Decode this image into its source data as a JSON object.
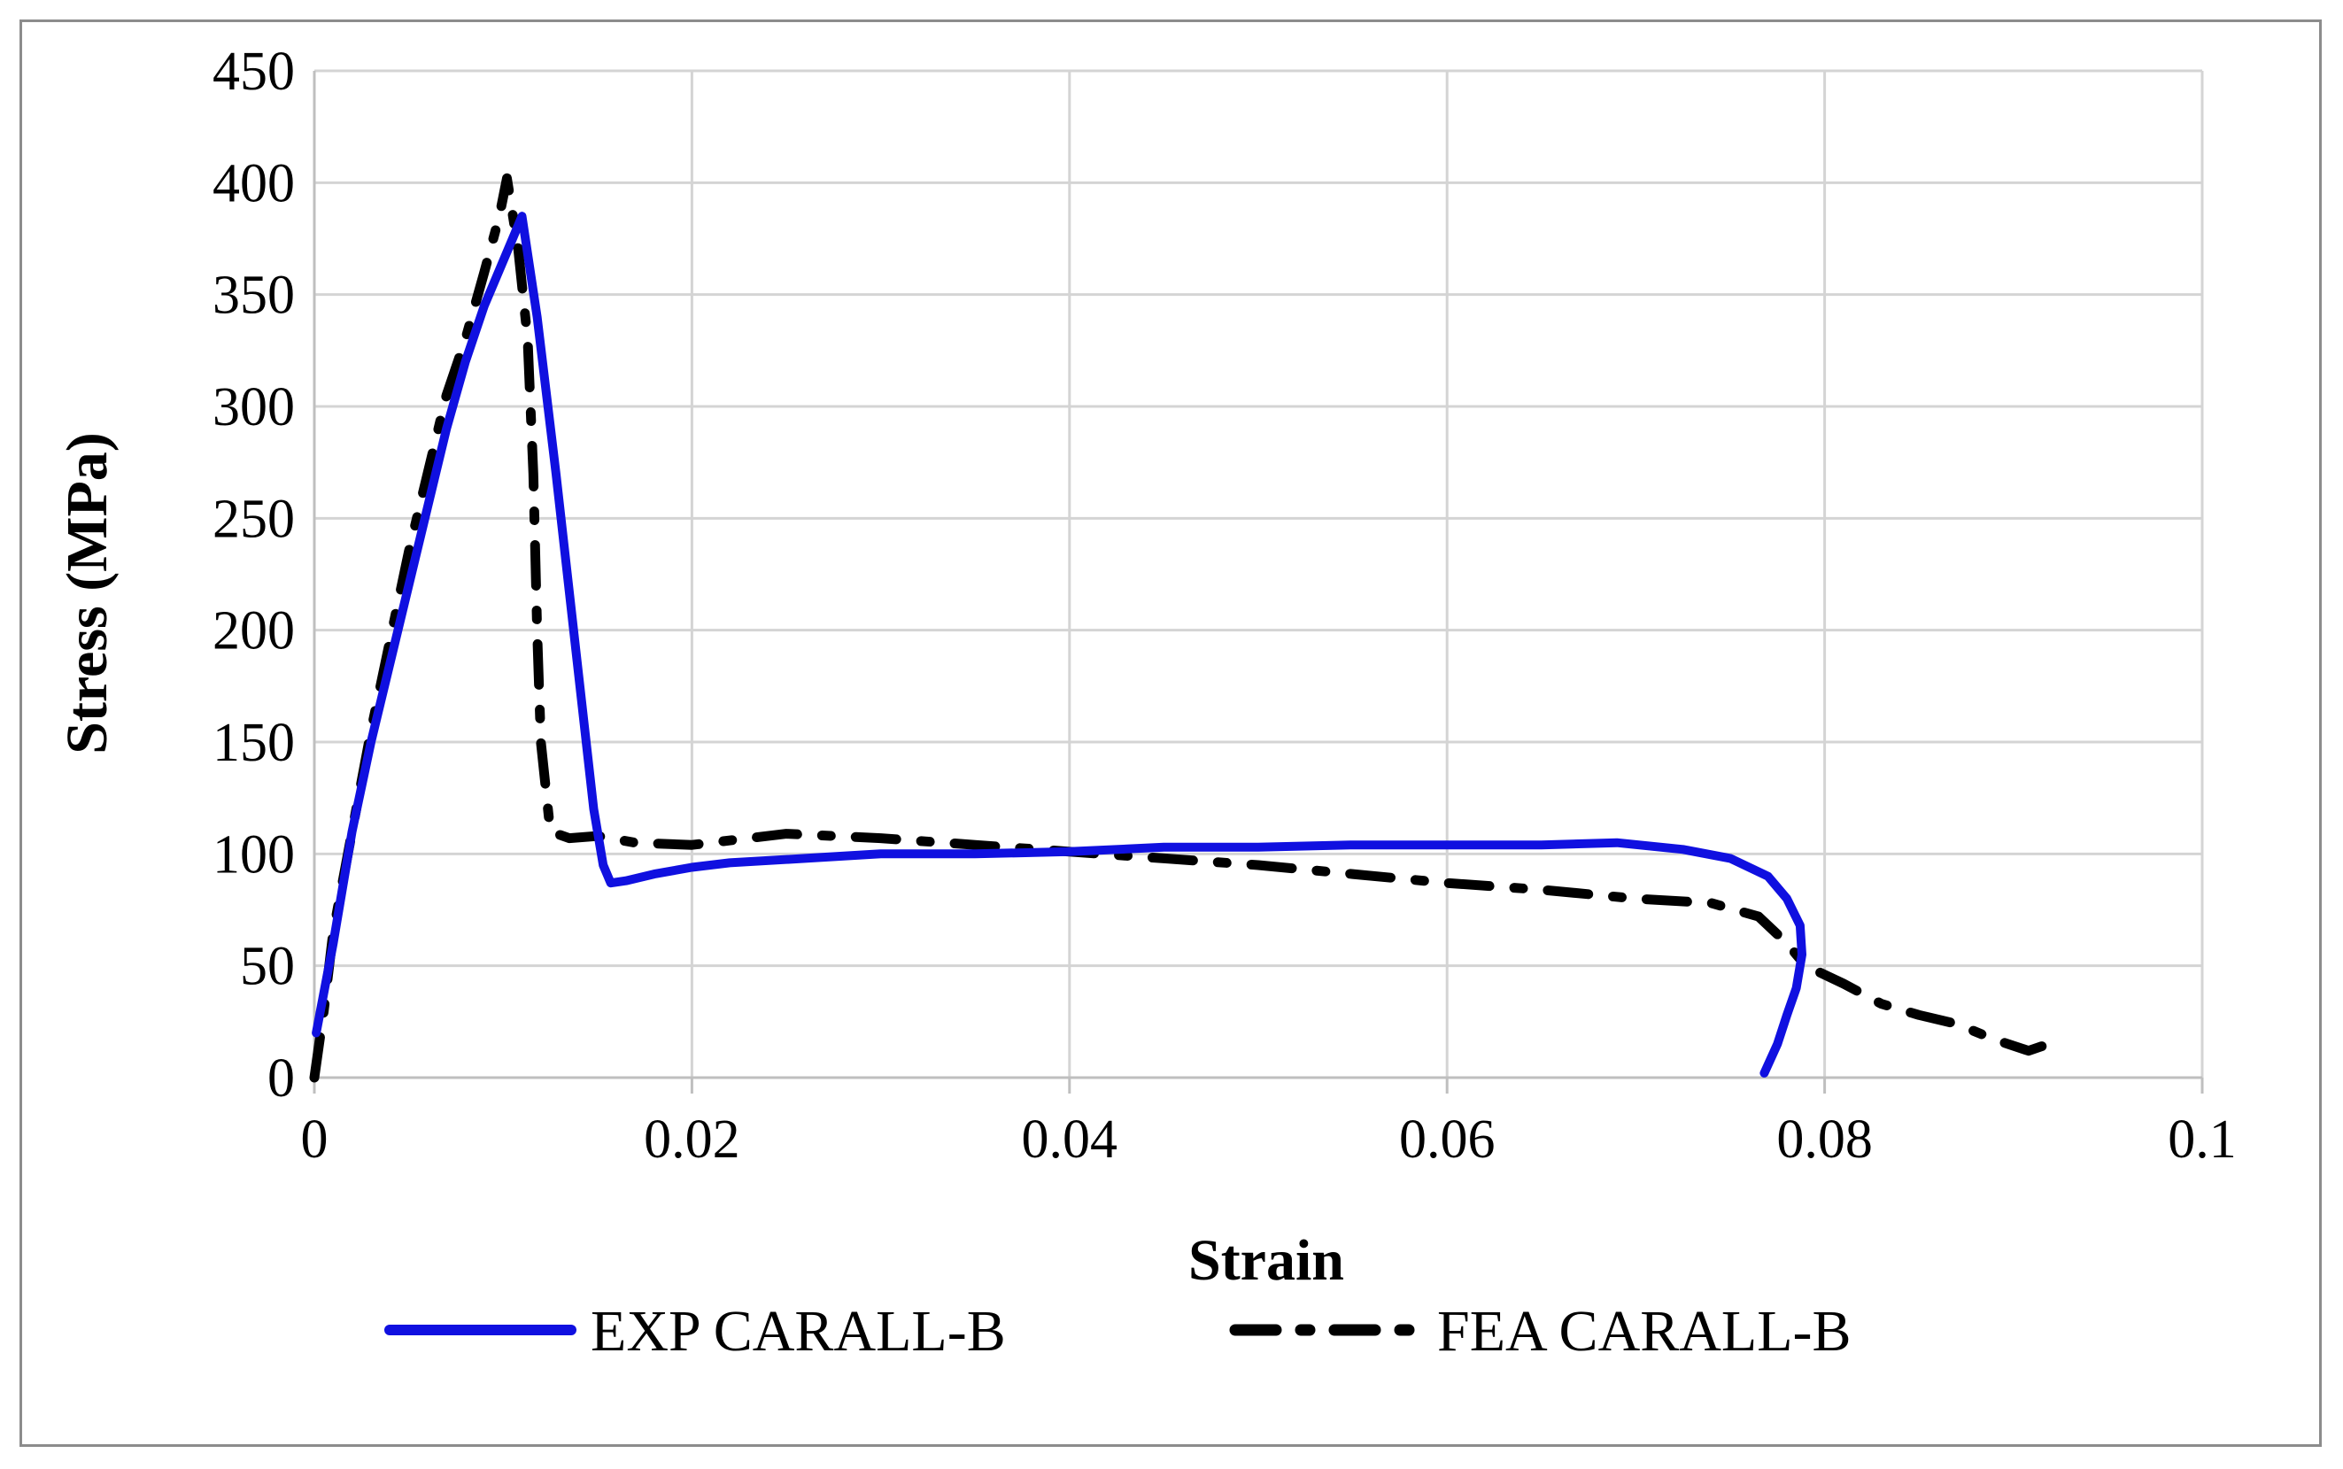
{
  "chart_data": {
    "type": "line",
    "title": "",
    "xlabel": "Strain",
    "ylabel": "Stress (MPa)",
    "xlim": [
      0,
      0.1
    ],
    "ylim": [
      0,
      450
    ],
    "x_ticks": [
      "0",
      "0.02",
      "0.04",
      "0.06",
      "0.08",
      "0.1"
    ],
    "y_ticks": [
      "0",
      "50",
      "100",
      "150",
      "200",
      "250",
      "300",
      "350",
      "400",
      "450"
    ],
    "grid": true,
    "legend_position": "bottom",
    "series": [
      {
        "name": "EXP CARALL-B",
        "color": "#1010e0",
        "style": "solid",
        "points": [
          [
            0.0001,
            20
          ],
          [
            0.001,
            60
          ],
          [
            0.002,
            110
          ],
          [
            0.003,
            150
          ],
          [
            0.004,
            185
          ],
          [
            0.005,
            220
          ],
          [
            0.006,
            255
          ],
          [
            0.007,
            290
          ],
          [
            0.008,
            320
          ],
          [
            0.009,
            345
          ],
          [
            0.0105,
            375
          ],
          [
            0.011,
            385
          ],
          [
            0.0118,
            340
          ],
          [
            0.0128,
            270
          ],
          [
            0.0138,
            195
          ],
          [
            0.0148,
            120
          ],
          [
            0.0153,
            95
          ],
          [
            0.0157,
            87
          ],
          [
            0.0165,
            88
          ],
          [
            0.018,
            91
          ],
          [
            0.02,
            94
          ],
          [
            0.022,
            96
          ],
          [
            0.026,
            98
          ],
          [
            0.03,
            100
          ],
          [
            0.035,
            100
          ],
          [
            0.04,
            101
          ],
          [
            0.045,
            103
          ],
          [
            0.05,
            103
          ],
          [
            0.055,
            104
          ],
          [
            0.06,
            104
          ],
          [
            0.065,
            104
          ],
          [
            0.069,
            105
          ],
          [
            0.0725,
            102
          ],
          [
            0.075,
            98
          ],
          [
            0.077,
            90
          ],
          [
            0.078,
            80
          ],
          [
            0.0787,
            68
          ],
          [
            0.0788,
            55
          ],
          [
            0.0785,
            40
          ],
          [
            0.078,
            28
          ],
          [
            0.0775,
            15
          ],
          [
            0.0768,
            2
          ]
        ]
      },
      {
        "name": "FEA CARALL-B",
        "color": "#000000",
        "style": "dash-dot",
        "points": [
          [
            0.0,
            0
          ],
          [
            0.0005,
            30
          ],
          [
            0.001,
            65
          ],
          [
            0.002,
            110
          ],
          [
            0.003,
            155
          ],
          [
            0.004,
            195
          ],
          [
            0.005,
            235
          ],
          [
            0.006,
            270
          ],
          [
            0.007,
            305
          ],
          [
            0.008,
            330
          ],
          [
            0.009,
            360
          ],
          [
            0.0098,
            385
          ],
          [
            0.0102,
            402
          ],
          [
            0.0108,
            370
          ],
          [
            0.0113,
            330
          ],
          [
            0.0116,
            270
          ],
          [
            0.0118,
            200
          ],
          [
            0.012,
            150
          ],
          [
            0.0125,
            110
          ],
          [
            0.0135,
            107
          ],
          [
            0.015,
            108
          ],
          [
            0.017,
            105
          ],
          [
            0.02,
            104
          ],
          [
            0.025,
            109
          ],
          [
            0.03,
            107
          ],
          [
            0.035,
            104
          ],
          [
            0.04,
            101
          ],
          [
            0.045,
            98
          ],
          [
            0.05,
            95
          ],
          [
            0.055,
            91
          ],
          [
            0.06,
            87
          ],
          [
            0.065,
            84
          ],
          [
            0.07,
            80
          ],
          [
            0.074,
            78
          ],
          [
            0.0765,
            72
          ],
          [
            0.078,
            60
          ],
          [
            0.079,
            50
          ],
          [
            0.081,
            42
          ],
          [
            0.083,
            33
          ],
          [
            0.085,
            28
          ],
          [
            0.087,
            24
          ],
          [
            0.089,
            17
          ],
          [
            0.0908,
            12
          ],
          [
            0.0915,
            14
          ]
        ]
      }
    ]
  }
}
